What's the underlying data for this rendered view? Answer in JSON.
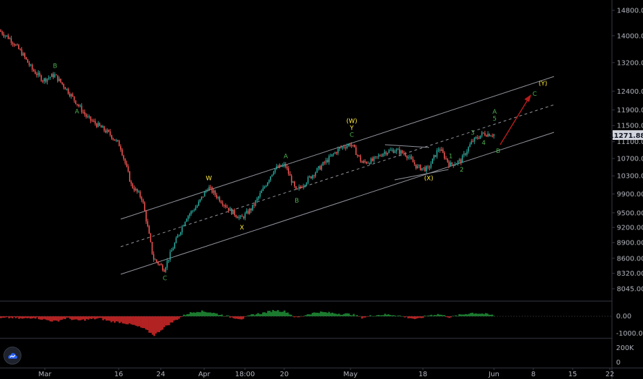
{
  "colors": {
    "background": "#000000",
    "up": "#26a69a",
    "down": "#ef5350",
    "label_green": "#4caf50",
    "label_yellow": "#ffeb3b",
    "arrow": "#b71c1c",
    "channel": "#9598a1",
    "osc_up": "#1b7a2e",
    "osc_down": "#b22222",
    "price_tag_bg": "#d1d4dc"
  },
  "last_price": "11271.88",
  "chart_data": {
    "type": "line",
    "title": "",
    "xlabel": "",
    "ylabel": "",
    "x_ticks": [
      "Mar",
      "16",
      "24",
      "Apr",
      "18:00",
      "20",
      "May",
      "18",
      "Jun",
      "8",
      "15",
      "22"
    ],
    "y_ticks": [
      "14800.00",
      "14000.00",
      "13200.00",
      "12400.00",
      "11900.00",
      "11500.00",
      "11100.00",
      "10700.00",
      "10300.00",
      "9900.00",
      "9500.00",
      "9200.00",
      "8900.00",
      "8600.00",
      "8320.00",
      "8045.00"
    ],
    "ylim": [
      8000,
      15000
    ],
    "series": [
      {
        "values": [
          14160,
          13900,
          13500,
          13000,
          12700,
          12850,
          12500,
          12100,
          11700,
          11500,
          11300,
          11000,
          10100,
          9800,
          8600,
          8400,
          8900,
          9400,
          9650,
          10050,
          9800,
          9550,
          9380,
          9600,
          10000,
          10450,
          10550,
          9950,
          10200,
          10450,
          10700,
          10950,
          11050,
          10600,
          10650,
          10850,
          10900,
          10800,
          10500,
          10450,
          10950,
          10550,
          10650,
          11100,
          11300,
          11280
        ]
      }
    ],
    "wave_labels": [
      {
        "text": "A",
        "color": "green",
        "index": 7,
        "pos": "below"
      },
      {
        "text": "B",
        "color": "green",
        "index": 5,
        "pos": "above"
      },
      {
        "text": "C",
        "color": "green",
        "index": 15,
        "pos": "below"
      },
      {
        "text": "W",
        "color": "yellow",
        "index": 19,
        "pos": "above"
      },
      {
        "text": "X",
        "color": "yellow",
        "index": 22,
        "pos": "below"
      },
      {
        "text": "A",
        "color": "green",
        "index": 26,
        "pos": "above"
      },
      {
        "text": "B",
        "color": "green",
        "index": 27,
        "pos": "below"
      },
      {
        "text": "(W)",
        "color": "yellow",
        "index": 32,
        "pos": "above2"
      },
      {
        "text": "Y",
        "color": "yellow",
        "index": 32,
        "pos": "above1"
      },
      {
        "text": "C",
        "color": "green",
        "index": 32,
        "pos": "above"
      },
      {
        "text": "(X)",
        "color": "yellow",
        "index": 39,
        "pos": "below"
      },
      {
        "text": "1",
        "color": "green",
        "index": 41,
        "pos": "above"
      },
      {
        "text": "2",
        "color": "green",
        "index": 42,
        "pos": "below"
      },
      {
        "text": "3",
        "color": "green",
        "index": 43,
        "pos": "above"
      },
      {
        "text": "4",
        "color": "green",
        "index": 44,
        "pos": "below"
      },
      {
        "text": "5",
        "color": "green",
        "index": 45,
        "pos": "above1"
      },
      {
        "text": "A",
        "color": "green",
        "index": 45,
        "pos": "above2"
      }
    ],
    "projection_labels": [
      {
        "text": "B",
        "color": "green"
      },
      {
        "text": "C",
        "color": "green"
      },
      {
        "text": "(Y)",
        "color": "yellow"
      }
    ],
    "oscillator": {
      "y_ticks": [
        "0.00",
        "-1000.00"
      ],
      "values": [
        -120,
        -80,
        -150,
        -60,
        -200,
        -300,
        -100,
        -250,
        -180,
        -120,
        -300,
        -350,
        -500,
        -700,
        -1100,
        -600,
        -200,
        150,
        300,
        250,
        100,
        -50,
        -150,
        100,
        200,
        350,
        280,
        -100,
        120,
        250,
        200,
        150,
        120,
        -80,
        60,
        100,
        80,
        -50,
        -180,
        60,
        120,
        -60,
        90,
        200,
        150,
        50
      ]
    },
    "volume_axis": {
      "y_ticks": [
        "200K",
        "0"
      ]
    }
  }
}
